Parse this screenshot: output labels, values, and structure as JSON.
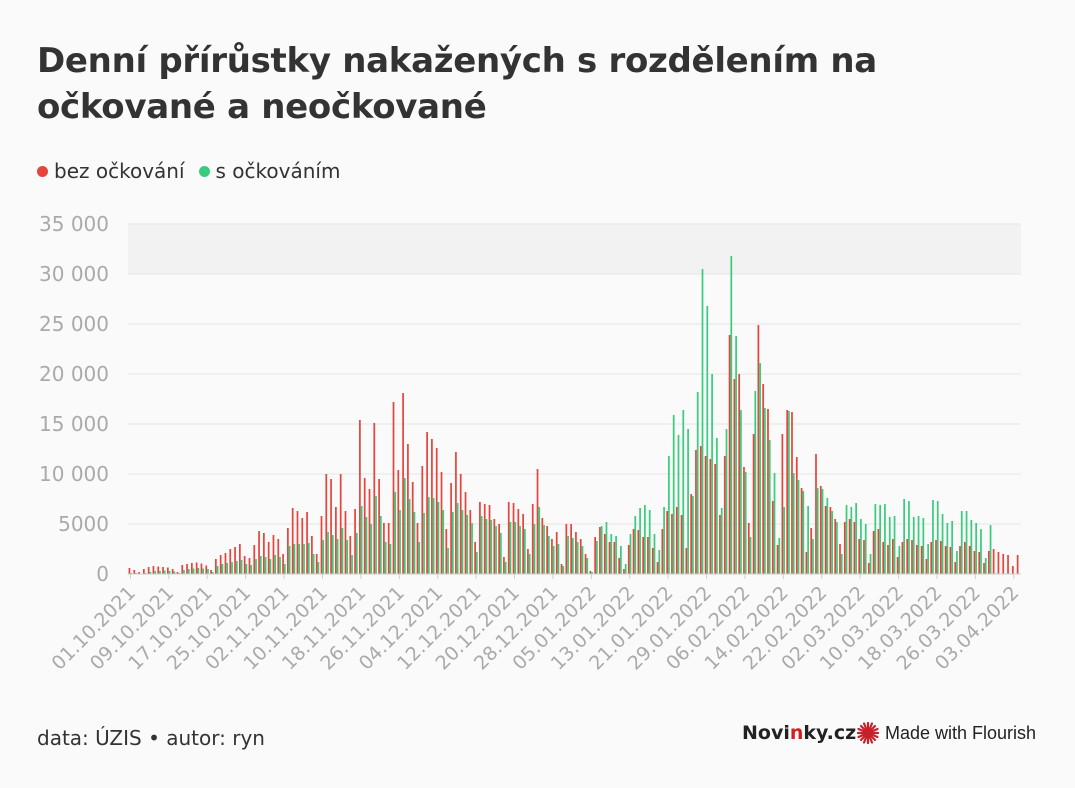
{
  "title": "Denní přírůstky nakažených s rozdělením na očkované a neočkované",
  "legend": {
    "unvaccinated_label": "bez očkování",
    "vaccinated_label": "s očkováním"
  },
  "colors": {
    "unvaccinated": "#e6453d",
    "vaccinated": "#39cc7e",
    "grid": "#e6e6e6",
    "axis_text": "#aaaaaa"
  },
  "footer": {
    "source": "data: ÚZIS • autor: ryn",
    "brand_pre": "Novi",
    "brand_accent": "n",
    "brand_post": "ky.cz",
    "flourish": "Made with Flourish"
  },
  "chart_data": {
    "type": "bar",
    "start_date": "2021-10-01",
    "ylim": [
      0,
      35000
    ],
    "y_ticks": [
      0,
      5000,
      10000,
      15000,
      20000,
      25000,
      30000,
      35000
    ],
    "y_tick_labels": [
      "0",
      "5000",
      "10 000",
      "15 000",
      "20 000",
      "25 000",
      "30 000",
      "35 000"
    ],
    "x_tick_labels": [
      "01.10.2021",
      "09.10.2021",
      "17.10.2021",
      "25.10.2021",
      "02.11.2021",
      "10.11.2021",
      "18.11.2021",
      "26.11.2021",
      "04.12.2021",
      "12.12.2021",
      "20.12.2021",
      "28.12.2021",
      "05.01.2022",
      "13.01.2022",
      "21.01.2022",
      "29.01.2022",
      "06.02.2022",
      "14.02.2022",
      "22.02.2022",
      "02.03.2022",
      "10.03.2022",
      "18.03.2022",
      "26.03.2022",
      "03.04.2022"
    ],
    "series": [
      {
        "name": "bez očkování",
        "values": [
          600,
          400,
          200,
          500,
          700,
          800,
          750,
          700,
          650,
          500,
          200,
          900,
          1000,
          1100,
          1150,
          1050,
          850,
          400,
          1500,
          1900,
          2100,
          2500,
          2700,
          3000,
          1800,
          1600,
          2900,
          4300,
          4100,
          3200,
          3900,
          3500,
          2000,
          4600,
          6600,
          6300,
          5600,
          6200,
          3800,
          2000,
          5800,
          10000,
          9500,
          6700,
          10000,
          6300,
          3800,
          6500,
          15400,
          9600,
          8500,
          15100,
          9500,
          5100,
          5100,
          17200,
          10400,
          18100,
          13000,
          9200,
          5100,
          10800,
          14200,
          13500,
          12600,
          10200,
          4500,
          9100,
          12200,
          10000,
          8200,
          6400,
          3200,
          7200,
          7000,
          6900,
          5500,
          5000,
          1700,
          7200,
          7100,
          6500,
          6000,
          2500,
          7000,
          10500,
          5600,
          4800,
          3500,
          4200,
          1000,
          5000,
          5000,
          4200,
          3500,
          2000,
          300,
          3700,
          4700,
          4000,
          3200,
          3200,
          1600,
          500,
          2900,
          4500,
          4400,
          3700,
          3700,
          2600,
          1200,
          4500,
          6300,
          6000,
          6700,
          5900,
          2600,
          8000,
          12400,
          12800,
          11800,
          11500,
          11000,
          5900,
          11800,
          23900,
          19500,
          20000,
          10700,
          5100,
          14000,
          24900,
          19000,
          16500,
          7300,
          2900,
          14000,
          16400,
          16200,
          11700,
          8600,
          2200,
          4600,
          12000,
          8800,
          6800,
          6700,
          5500,
          3000,
          5200,
          5500,
          5200,
          3500,
          3400,
          1100,
          4300,
          4500,
          3200,
          2900,
          3500,
          1700,
          3200,
          3500,
          3400,
          2900,
          2800,
          1500,
          3200,
          3400,
          3300,
          2800,
          2700,
          1200,
          2800,
          3200,
          2800,
          2300,
          2200,
          1100,
          2300,
          2500,
          2200,
          2000,
          1900,
          800,
          1900
        ],
        "color": "#e6453d"
      },
      {
        "name": "s očkováním",
        "values": [
          100,
          100,
          50,
          100,
          200,
          300,
          300,
          350,
          300,
          250,
          100,
          400,
          500,
          550,
          600,
          550,
          500,
          200,
          800,
          1000,
          1100,
          1200,
          1300,
          1400,
          1000,
          900,
          1500,
          1800,
          1700,
          1500,
          1900,
          1700,
          1000,
          2800,
          3000,
          3000,
          3000,
          3100,
          2000,
          1200,
          3400,
          4200,
          3900,
          3500,
          4600,
          3400,
          1900,
          4100,
          6800,
          5700,
          5000,
          7800,
          5800,
          3200,
          3000,
          8200,
          6400,
          9600,
          7500,
          6200,
          3200,
          6100,
          7700,
          7600,
          7200,
          6400,
          2600,
          6200,
          7100,
          6400,
          5900,
          5100,
          2200,
          5800,
          5500,
          5400,
          4800,
          4100,
          1200,
          5200,
          5200,
          4800,
          4500,
          2000,
          5000,
          6700,
          4900,
          3800,
          2800,
          3000,
          800,
          3800,
          3600,
          3200,
          2800,
          1600,
          200,
          3300,
          4800,
          5200,
          4000,
          3800,
          2800,
          1000,
          4000,
          5800,
          6600,
          6900,
          6400,
          4000,
          2400,
          6700,
          11800,
          15900,
          13900,
          16400,
          14500,
          7800,
          18200,
          30500,
          26800,
          20000,
          13600,
          6600,
          14500,
          31800,
          23800,
          16400,
          10200,
          3700,
          18300,
          21100,
          16600,
          13400,
          10100,
          3600,
          6700,
          16300,
          10100,
          9400,
          8300,
          6800,
          3500,
          8600,
          8500,
          7600,
          6300,
          5200,
          2000,
          6900,
          6700,
          7100,
          5500,
          5000,
          2000,
          7000,
          6900,
          7000,
          5700,
          5800,
          2800,
          7500,
          7300,
          5700,
          5800,
          5600,
          3000,
          7400,
          7300,
          6000,
          5100,
          5300,
          2300,
          6300,
          6300,
          5400,
          5100,
          4500,
          1600,
          4900
        ],
        "color": "#39cc7e"
      }
    ]
  }
}
